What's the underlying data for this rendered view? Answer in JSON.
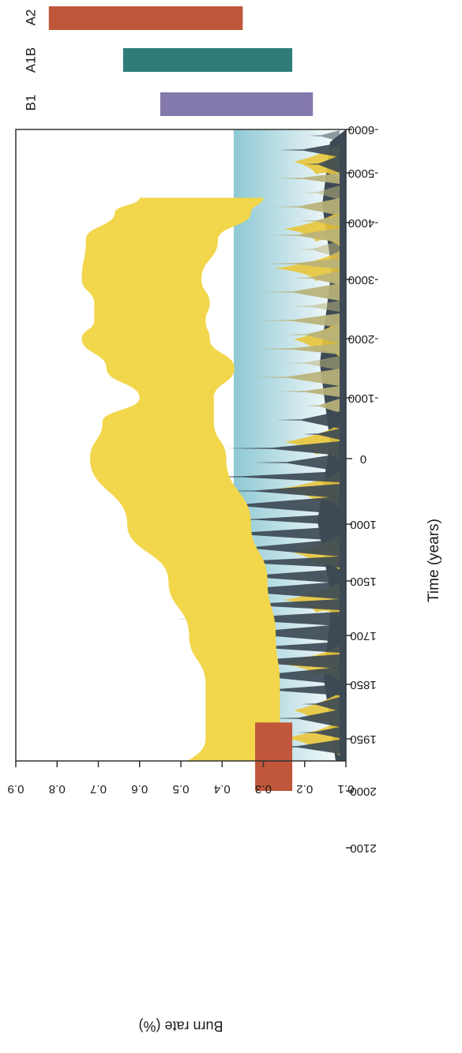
{
  "colors": {
    "band": "#f2d64b",
    "sky_top": "#ffffff",
    "sky_bottom": "#8ec9d4",
    "forest": "#3d4a55",
    "flame": "#e8c53a",
    "axis": "#333333",
    "a2": "#c0573a",
    "a1b": "#2f7c7a",
    "b1": "#8479ac",
    "obs": "#c0573a"
  },
  "icons": {
    "tree": "conifer-tree-icon",
    "flame": "flame-icon"
  },
  "chart_data": {
    "type": "area",
    "orientation": "rotated-90-clockwise",
    "xlabel": "Time (years)",
    "ylabel": "Burn rate (%)",
    "x_tick_labels": [
      "-6000",
      "-5000",
      "-4000",
      "-3000",
      "-2000",
      "-1000",
      "0",
      "1000",
      "1500",
      "1700",
      "1850",
      "1950",
      "2000",
      "2100"
    ],
    "ylim": [
      0.1,
      0.9
    ],
    "y_ticks": [
      0.1,
      0.2,
      0.3,
      0.4,
      0.5,
      0.6,
      0.7,
      0.8,
      0.9
    ],
    "y_tick_labels": [
      "0.1",
      "0.2",
      "0.3",
      "0.4",
      "0.5",
      "0.6",
      "0.7",
      "0.8",
      "0.9"
    ],
    "band": {
      "x": [
        "-4500",
        "-4200",
        "-3700",
        "-3000",
        "-2600",
        "-2300",
        "-2000",
        "-1500",
        "-1000",
        "-600",
        "0",
        "1000",
        "1500",
        "1700",
        "1850",
        "1950",
        "2000",
        "2100"
      ],
      "upper": [
        0.6,
        0.66,
        0.73,
        0.74,
        0.71,
        0.71,
        0.74,
        0.68,
        0.6,
        0.69,
        0.72,
        0.63,
        0.53,
        0.48,
        0.44,
        0.44,
        0.57,
        0.8
      ],
      "lower": [
        0.3,
        0.33,
        0.41,
        0.45,
        0.43,
        0.44,
        0.43,
        0.37,
        0.42,
        0.42,
        0.39,
        0.33,
        0.29,
        0.27,
        0.26,
        0.26,
        0.25,
        0.25
      ]
    },
    "observed": {
      "x_from": "1920",
      "x_to": "2000",
      "y_from": 0.23,
      "y_to": 0.32
    },
    "scenarios": [
      {
        "name": "A2",
        "from": 0.35,
        "to": 0.82
      },
      {
        "name": "A1B",
        "from": 0.23,
        "to": 0.64
      },
      {
        "name": "B1",
        "from": 0.18,
        "to": 0.55
      }
    ],
    "grid": false
  }
}
